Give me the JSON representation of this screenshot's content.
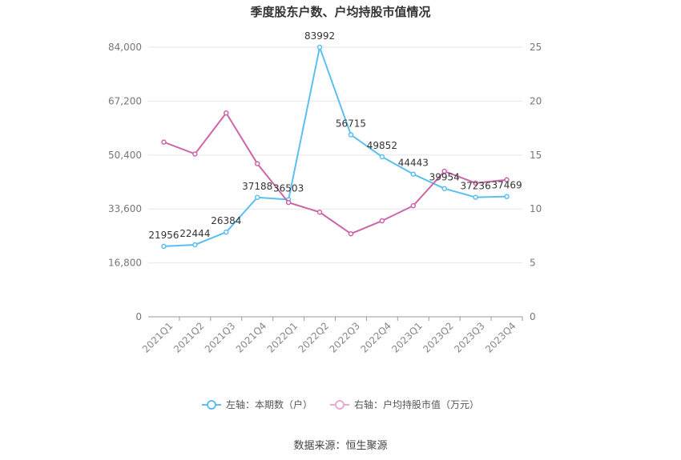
{
  "chart_data": {
    "type": "line",
    "title": "季度股东户数、户均持股市值情况",
    "categories": [
      "2021Q1",
      "2021Q2",
      "2021Q3",
      "2021Q4",
      "2022Q1",
      "2022Q2",
      "2022Q3",
      "2022Q4",
      "2023Q1",
      "2023Q2",
      "2023Q3",
      "2023Q4"
    ],
    "series": [
      {
        "name": "左轴：本期数（户）",
        "axis": "left",
        "color": "#5bc0f0",
        "values": [
          21956,
          22444,
          26384,
          37188,
          36503,
          83992,
          56715,
          49852,
          44443,
          39954,
          37236,
          37469
        ],
        "labels": [
          "21956",
          "22444",
          "26384",
          "37188",
          "36503",
          "83992",
          "56715",
          "49852",
          "44443",
          "39954",
          "37236",
          "37469"
        ]
      },
      {
        "name": "右轴：户均持股市值（万元）",
        "axis": "right",
        "color": "#cc66a8",
        "values": [
          16.2,
          15.1,
          18.9,
          14.2,
          10.6,
          9.7,
          7.7,
          8.9,
          10.3,
          13.5,
          12.4,
          12.7
        ]
      }
    ],
    "left_axis": {
      "ticks": [
        "0",
        "16,800",
        "33,600",
        "50,400",
        "67,200",
        "84,000"
      ],
      "tick_values": [
        0,
        16800,
        33600,
        50400,
        67200,
        84000
      ],
      "ylim": [
        0,
        84000
      ]
    },
    "right_axis": {
      "ticks": [
        "0",
        "5",
        "10",
        "15",
        "20",
        "25"
      ],
      "tick_values": [
        0,
        5,
        10,
        15,
        20,
        25
      ],
      "ylim": [
        0,
        25
      ]
    },
    "grid": true,
    "legend_position": "bottom"
  },
  "source_text": "数据来源：恒生聚源"
}
